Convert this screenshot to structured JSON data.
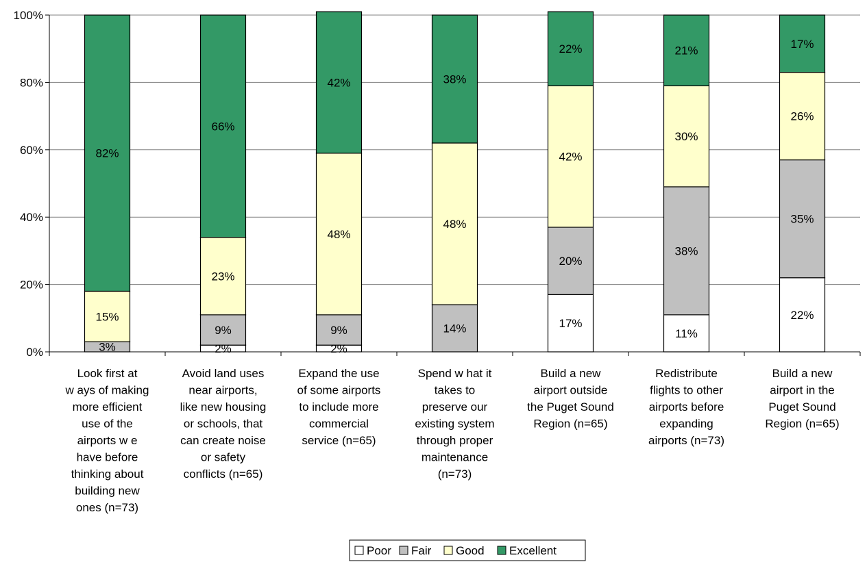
{
  "chart_data": {
    "type": "bar",
    "stacked": true,
    "percent": true,
    "title": "",
    "xlabel": "",
    "ylabel": "",
    "ylim": [
      0,
      100
    ],
    "yticks": [
      "0%",
      "20%",
      "40%",
      "60%",
      "80%",
      "100%"
    ],
    "grid": true,
    "legend_position": "bottom",
    "categories": [
      [
        "Look first at",
        "w ays of making",
        "more efficient",
        "use of the",
        "airports w e",
        "have before",
        "thinking about",
        "building new",
        "ones (n=73)"
      ],
      [
        "Avoid land uses",
        "near airports,",
        "like new  housing",
        "or schools, that",
        "can create noise",
        "or safety",
        "conflicts (n=65)"
      ],
      [
        "Expand the use",
        "of some airports",
        "to include more",
        "commercial",
        "service (n=65)"
      ],
      [
        "Spend w hat it",
        "takes to",
        "preserve our",
        "existing system",
        "through proper",
        "maintenance",
        "(n=73)"
      ],
      [
        "Build a new",
        "airport outside",
        "the Puget Sound",
        "Region (n=65)"
      ],
      [
        "Redistribute",
        "flights to other",
        "airports before",
        "expanding",
        "airports (n=73)"
      ],
      [
        "Build a new",
        "airport in the",
        "Puget Sound",
        "Region (n=65)"
      ]
    ],
    "series": [
      {
        "name": "Poor",
        "color": "#ffffff",
        "values": [
          0,
          2,
          2,
          0,
          17,
          11,
          22
        ],
        "labels": [
          "",
          "2%",
          "2%",
          "",
          "17%",
          "11%",
          "22%"
        ]
      },
      {
        "name": "Fair",
        "color": "#c0c0c0",
        "values": [
          3,
          9,
          9,
          14,
          20,
          38,
          35
        ],
        "labels": [
          "3%",
          "9%",
          "9%",
          "14%",
          "20%",
          "38%",
          "35%"
        ]
      },
      {
        "name": "Good",
        "color": "#ffffcc",
        "values": [
          15,
          23,
          48,
          48,
          42,
          30,
          26
        ],
        "labels": [
          "15%",
          "23%",
          "48%",
          "48%",
          "42%",
          "30%",
          "26%"
        ]
      },
      {
        "name": "Excellent",
        "color": "#339966",
        "values": [
          82,
          66,
          42,
          38,
          22,
          21,
          17
        ],
        "labels": [
          "82%",
          "66%",
          "42%",
          "38%",
          "22%",
          "21%",
          "17%"
        ]
      }
    ]
  }
}
